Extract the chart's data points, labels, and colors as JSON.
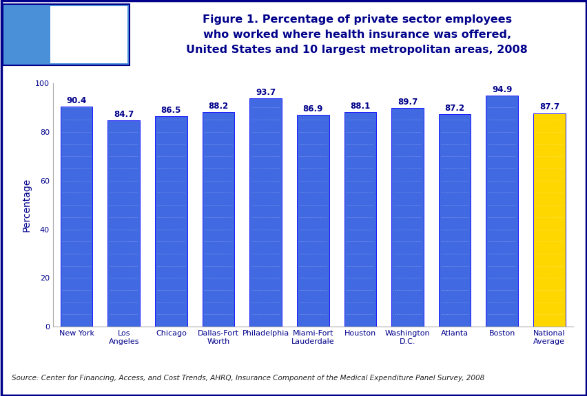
{
  "categories": [
    "New York",
    "Los\nAngeles",
    "Chicago",
    "Dallas-Fort\nWorth",
    "Philadelphia",
    "Miami-Fort\nLauderdale",
    "Houston",
    "Washington\nD.C.",
    "Atlanta",
    "Boston",
    "National\nAverage"
  ],
  "values": [
    90.4,
    84.7,
    86.5,
    88.2,
    93.7,
    86.9,
    88.1,
    89.7,
    87.2,
    94.9,
    87.7
  ],
  "bar_colors": [
    "#4169E1",
    "#4169E1",
    "#4169E1",
    "#4169E1",
    "#4169E1",
    "#4169E1",
    "#4169E1",
    "#4169E1",
    "#4169E1",
    "#4169E1",
    "#FFD700"
  ],
  "title_line1": "Figure 1. Percentage of private sector employees",
  "title_line2": "who worked where health insurance was offered,",
  "title_line3": "United States and 10 largest metropolitan areas, 2008",
  "ylabel": "Percentage",
  "ylim": [
    0,
    100
  ],
  "yticks": [
    0,
    20,
    40,
    60,
    80,
    100
  ],
  "source_text": "Source: Center for Financing, Access, and Cost Trends, AHRQ, Insurance Component of the Medical Expenditure Panel Survey, 2008",
  "title_color": "#00008B",
  "bar_edge_color": "#1a1aff",
  "label_color": "#00008B",
  "value_label_fontsize": 8.5,
  "axis_label_fontsize": 10,
  "tick_label_fontsize": 8,
  "source_fontsize": 7.5,
  "background_color": "#FFFFFF",
  "header_line_color": "#00008B",
  "outer_border_color": "#00008B",
  "logo_bg_color": "#4A90D9",
  "logo_box_color": "#FFFFFF",
  "header_bg_color": "#FFFFFF"
}
